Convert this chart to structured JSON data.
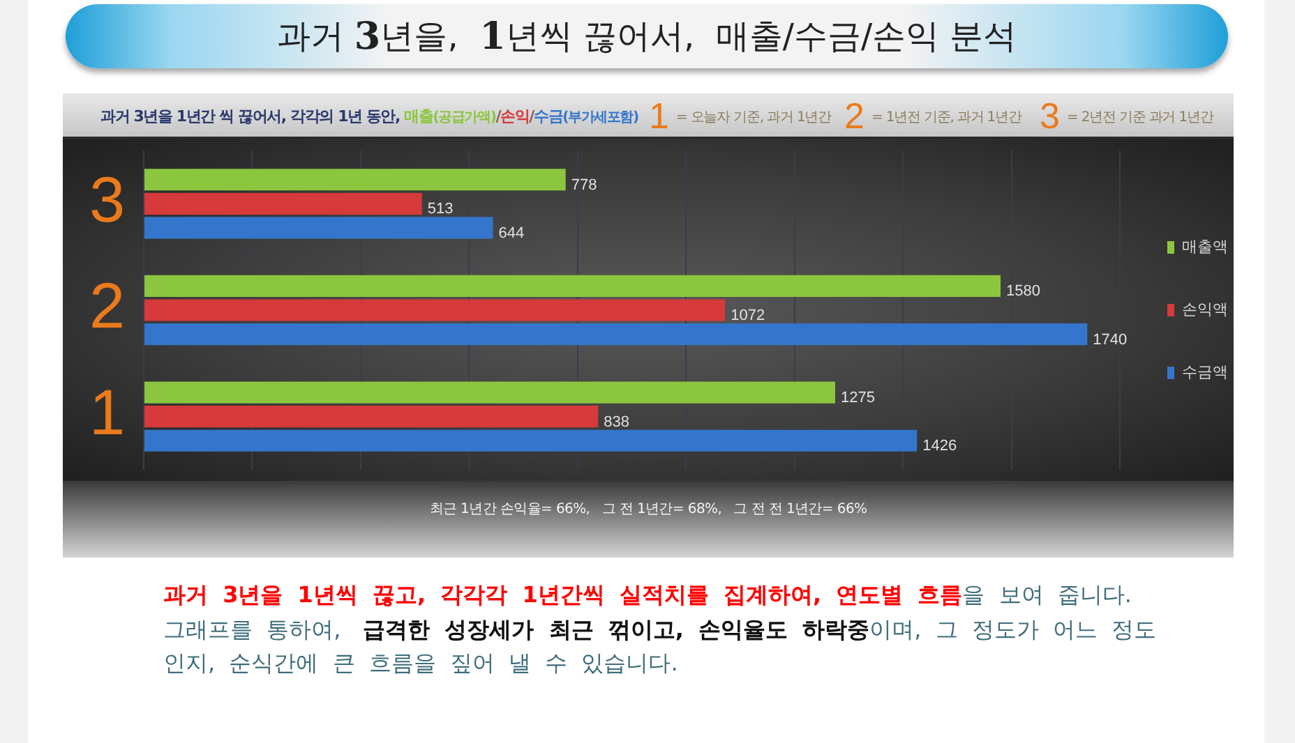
{
  "chart_data": {
    "type": "bar",
    "orientation": "horizontal",
    "title": "과거 3년을,  1년씩 끊어서,  매출/수금/손익 분석",
    "subtitle": "과거 3년을 1년간 씩 끊어서, 각각의 1년 동안, 매출(공급가액)/손익/수금(부가세포함)",
    "categories": [
      "3",
      "2",
      "1"
    ],
    "series": [
      {
        "name": "매출액",
        "color": "#8cc63f",
        "values": [
          778,
          1580,
          1275
        ]
      },
      {
        "name": "손익액",
        "color": "#d63a3a",
        "values": [
          513,
          1072,
          838
        ]
      },
      {
        "name": "수금액",
        "color": "#3476cc",
        "values": [
          644,
          1740,
          1426
        ]
      }
    ],
    "xlim": [
      0,
      1800
    ],
    "xticks": [
      0,
      200,
      400,
      600,
      800,
      1000,
      1200,
      1400,
      1600,
      1800
    ],
    "tick_labels": "y",
    "grid": "x",
    "legend": "right",
    "data_labels": true,
    "annotations": [
      "1 = 오늘자 기준, 과거 1년간",
      "2 = 1년전 기준, 과거 1년간",
      "3 = 2년전 기준 과거 1년간",
      "최근 1년간 손익율= 66%,   그 전 1년간= 68%,   그 전 전 1년간= 66%",
      "과거 3년을 1년씩 끊고, 각각각 1년간씩 실적치를 집계하여, 연도별 흐름",
      "을 보여 줍니다.",
      "그래프를 통하여,",
      "급격한 성장세가 최근 꺾이고, 손익율도 하락중",
      "이며, 그 정도가 어느 정도",
      "인지, 순식간에 큰 흐름을 짚어 낼 수 있습니다."
    ]
  }
}
